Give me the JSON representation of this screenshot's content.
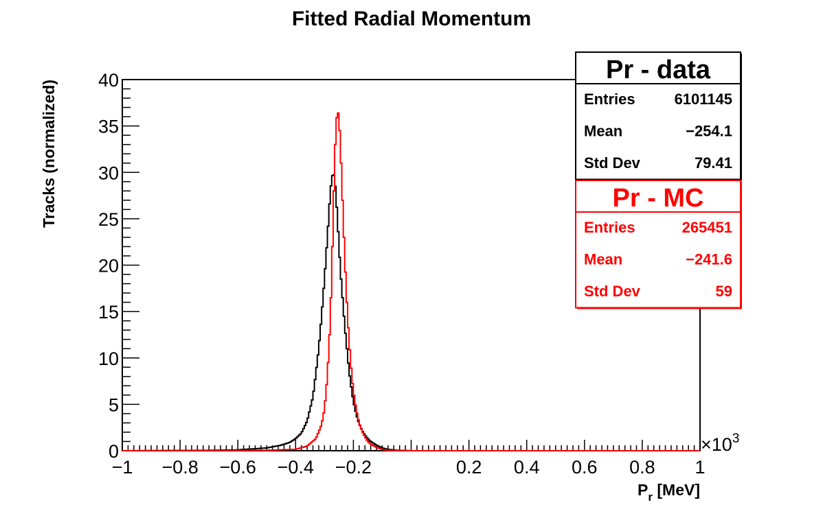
{
  "chart_data": {
    "type": "histogram",
    "title": "Fitted Radial Momentum",
    "ylabel": "Tracks (normalized)",
    "xlabel": "P",
    "xlabel_subscript": "r",
    "xlabel_unit": "[MeV]",
    "x_multiplier_prefix": "×10",
    "x_multiplier_exponent": "3",
    "xlim": [
      -1,
      1
    ],
    "ylim": [
      0,
      40
    ],
    "xticks": [
      {
        "value": -1,
        "label": "−1"
      },
      {
        "value": -0.8,
        "label": "−0.8"
      },
      {
        "value": -0.6,
        "label": "−0.6"
      },
      {
        "value": -0.4,
        "label": "−0.4"
      },
      {
        "value": -0.2,
        "label": "−0.2"
      },
      {
        "value": 0.2,
        "label": "0.2"
      },
      {
        "value": 0.4,
        "label": "0.4"
      },
      {
        "value": 0.6,
        "label": "0.6"
      },
      {
        "value": 0.8,
        "label": "0.8"
      },
      {
        "value": 1,
        "label": "1"
      }
    ],
    "yticks": [
      {
        "value": 0,
        "label": "0"
      },
      {
        "value": 5,
        "label": "5"
      },
      {
        "value": 10,
        "label": "10"
      },
      {
        "value": 15,
        "label": "15"
      },
      {
        "value": 20,
        "label": "20"
      },
      {
        "value": 25,
        "label": "25"
      },
      {
        "value": 30,
        "label": "30"
      },
      {
        "value": 35,
        "label": "35"
      },
      {
        "value": 40,
        "label": "40"
      }
    ],
    "series": [
      {
        "name": "Pr - data",
        "color": "#000000",
        "x": [
          -1.0,
          -0.7,
          -0.6,
          -0.5,
          -0.45,
          -0.42,
          -0.4,
          -0.38,
          -0.36,
          -0.34,
          -0.33,
          -0.32,
          -0.31,
          -0.3,
          -0.29,
          -0.28,
          -0.275,
          -0.27,
          -0.265,
          -0.26,
          -0.255,
          -0.25,
          -0.245,
          -0.24,
          -0.235,
          -0.23,
          -0.225,
          -0.22,
          -0.215,
          -0.21,
          -0.2,
          -0.19,
          -0.18,
          -0.17,
          -0.16,
          -0.15,
          -0.14,
          -0.12,
          -0.1,
          -0.08,
          -0.05,
          0.0,
          0.2,
          1.0
        ],
        "y": [
          0,
          0.05,
          0.1,
          0.3,
          0.6,
          0.9,
          1.3,
          1.9,
          3.2,
          5.8,
          8.3,
          11.0,
          14.5,
          18.5,
          23.0,
          27.8,
          29.3,
          30.0,
          29.5,
          27.5,
          25.0,
          22.2,
          19.5,
          17.5,
          15.5,
          13.5,
          11.8,
          10.2,
          8.7,
          7.4,
          5.3,
          3.9,
          2.9,
          2.2,
          1.7,
          1.3,
          1.0,
          0.6,
          0.3,
          0.15,
          0.05,
          0,
          0,
          0
        ]
      },
      {
        "name": "Pr - MC",
        "color": "#ff0000",
        "x": [
          -1.0,
          -0.5,
          -0.4,
          -0.36,
          -0.33,
          -0.31,
          -0.3,
          -0.29,
          -0.28,
          -0.275,
          -0.27,
          -0.265,
          -0.26,
          -0.255,
          -0.25,
          -0.245,
          -0.24,
          -0.235,
          -0.23,
          -0.225,
          -0.22,
          -0.215,
          -0.21,
          -0.205,
          -0.2,
          -0.19,
          -0.18,
          -0.17,
          -0.16,
          -0.15,
          -0.14,
          -0.12,
          -0.1,
          -0.08,
          -0.05,
          0.0,
          1.0
        ],
        "y": [
          0,
          0.05,
          0.15,
          0.5,
          1.3,
          2.8,
          4.5,
          8.0,
          14.0,
          19.0,
          25.0,
          31.0,
          35.0,
          36.8,
          36.0,
          33.0,
          29.0,
          25.0,
          21.0,
          17.5,
          14.5,
          12.0,
          9.8,
          8.0,
          6.5,
          4.4,
          3.0,
          2.1,
          1.5,
          1.0,
          0.7,
          0.35,
          0.15,
          0.05,
          0.02,
          0,
          0
        ]
      }
    ],
    "stats_boxes": [
      {
        "title": "Pr - data",
        "color": "#000000",
        "rows": [
          {
            "label": "Entries",
            "value": "6101145"
          },
          {
            "label": "Mean",
            "value": "−254.1"
          },
          {
            "label": "Std Dev",
            "value": "79.41"
          }
        ]
      },
      {
        "title": "Pr - MC",
        "color": "#ff0000",
        "rows": [
          {
            "label": "Entries",
            "value": "265451"
          },
          {
            "label": "Mean",
            "value": "−241.6"
          },
          {
            "label": "Std Dev",
            "value": "59"
          }
        ]
      }
    ],
    "grid": false,
    "legend": "top-right"
  }
}
